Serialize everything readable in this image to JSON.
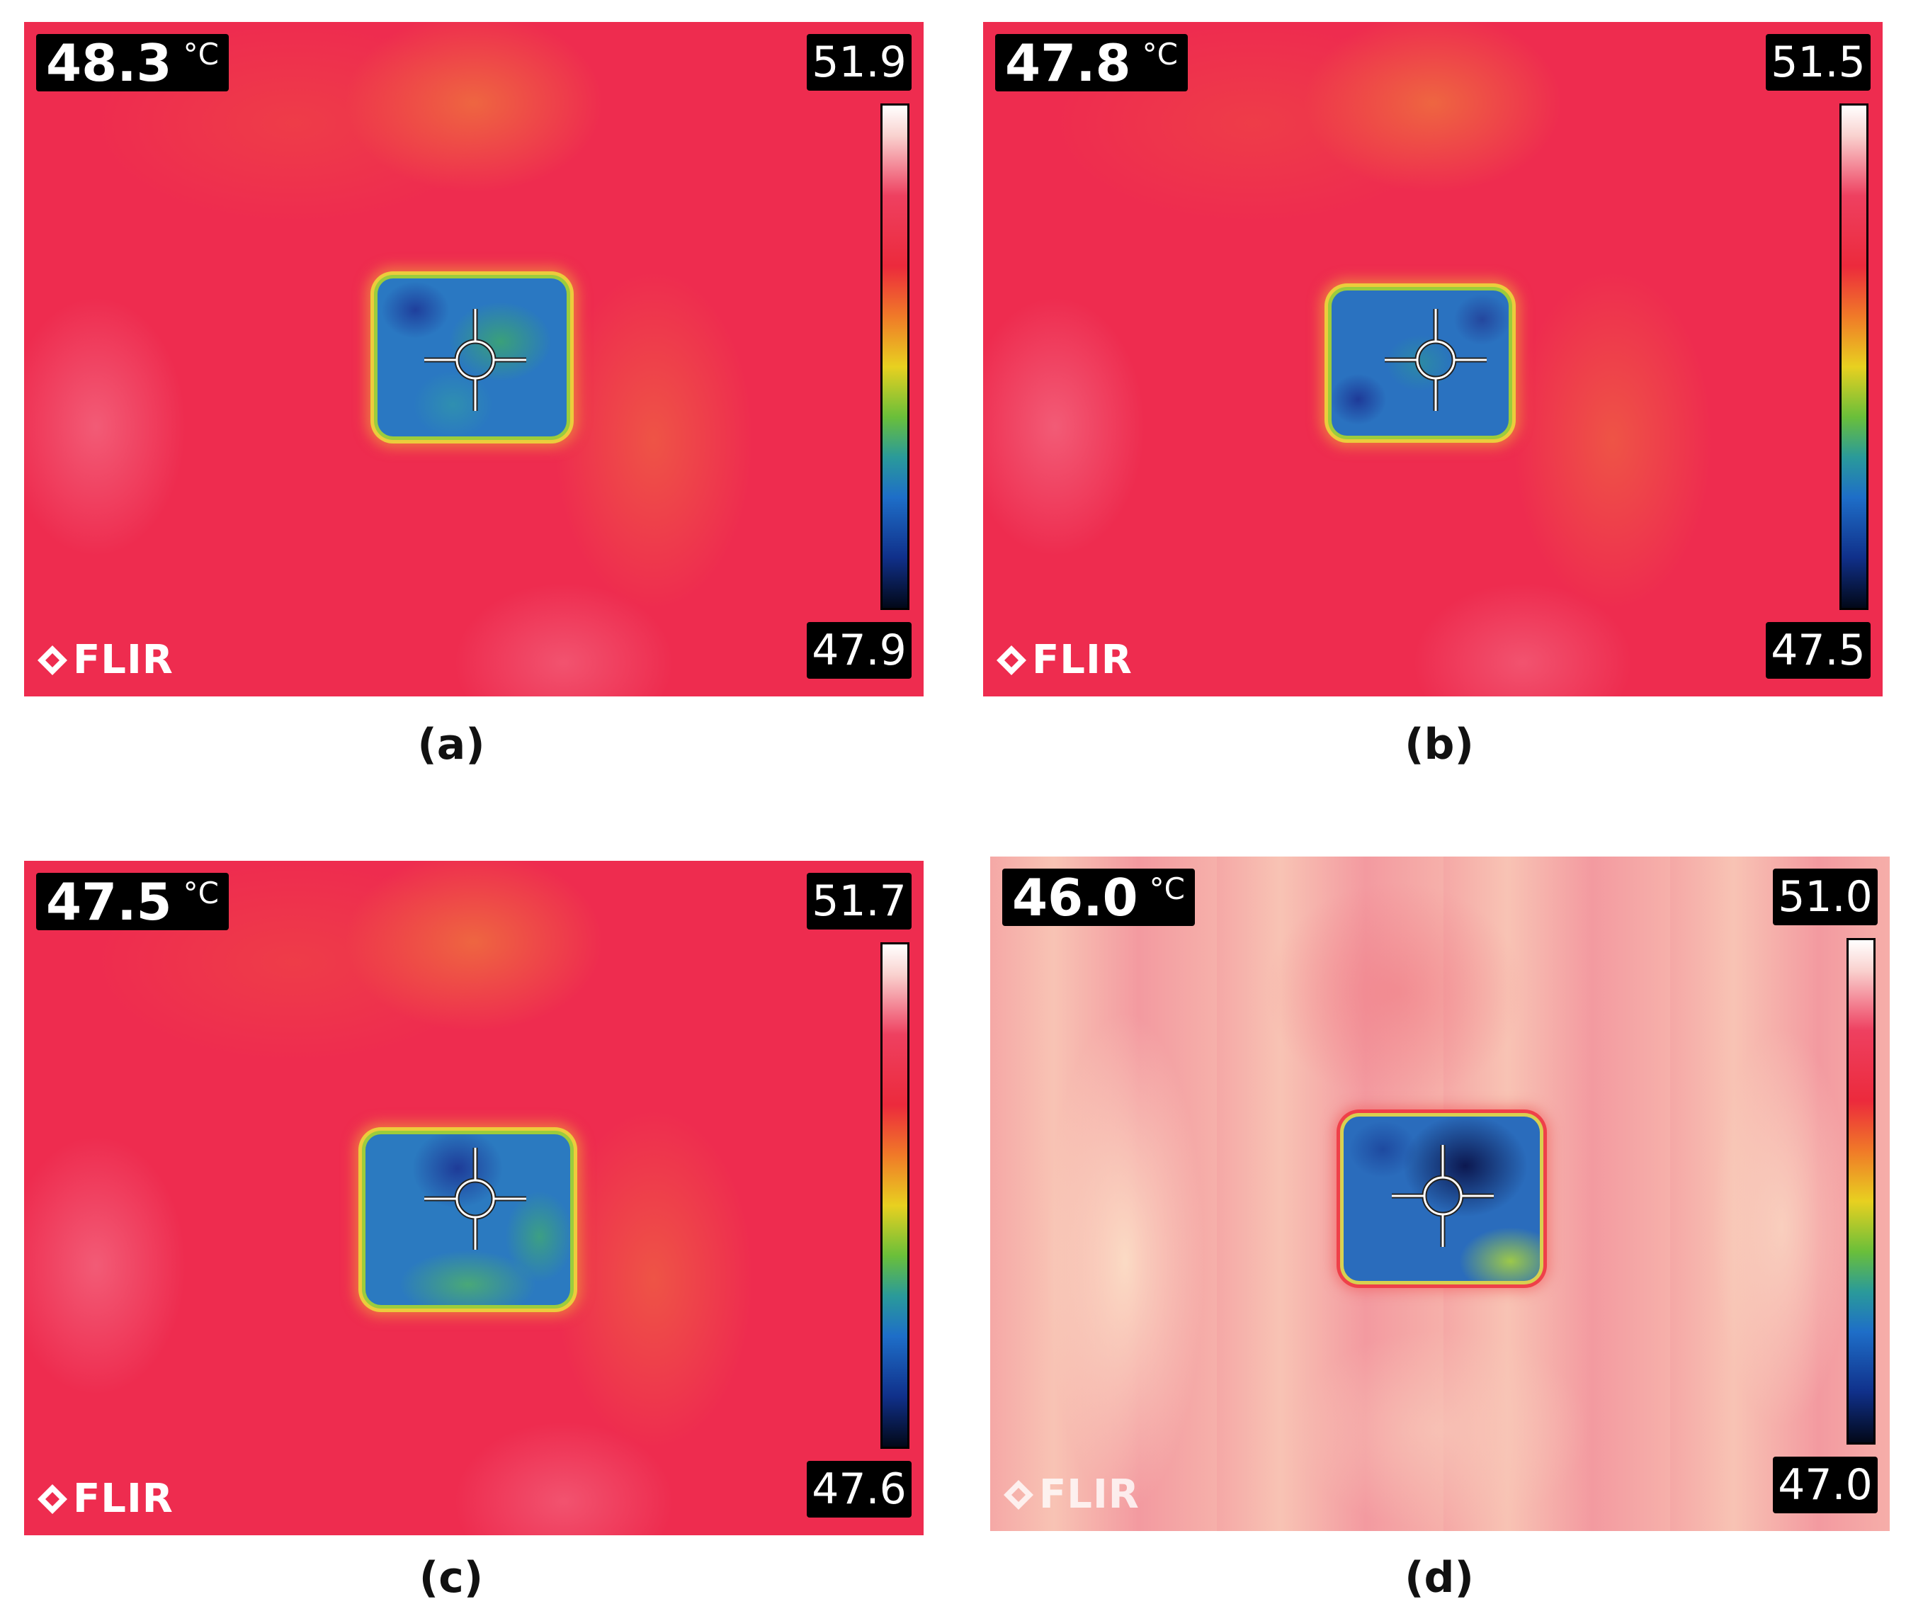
{
  "panels": [
    {
      "spot_temperature": "48.3",
      "unit": "°C",
      "scale_max": "51.9",
      "scale_min": "47.9",
      "logo": "FLIR",
      "caption": "(a)"
    },
    {
      "spot_temperature": "47.8",
      "unit": "°C",
      "scale_max": "51.5",
      "scale_min": "47.5",
      "logo": "FLIR",
      "caption": "(b)"
    },
    {
      "spot_temperature": "47.5",
      "unit": "°C",
      "scale_max": "51.7",
      "scale_min": "47.6",
      "logo": "FLIR",
      "caption": "(c)"
    },
    {
      "spot_temperature": "46.0",
      "unit": "°C",
      "scale_max": "51.0",
      "scale_min": "47.0",
      "logo": "FLIR",
      "caption": "(d)"
    }
  ]
}
